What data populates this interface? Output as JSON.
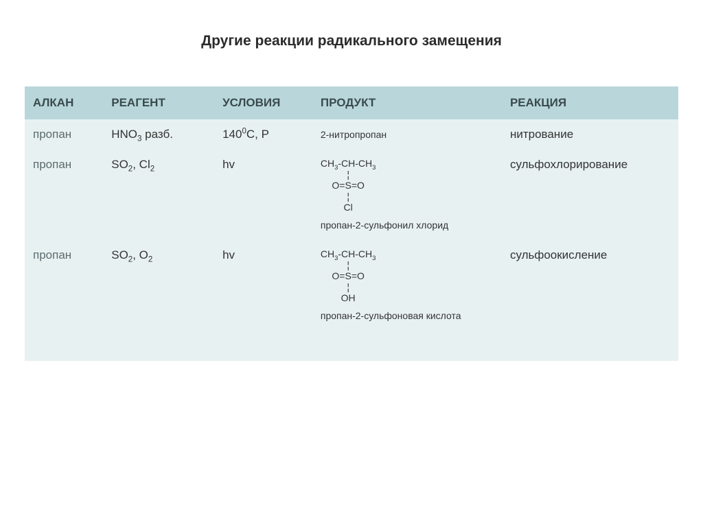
{
  "title": "Другие реакции радикального замещения",
  "columns": {
    "alkane": "АЛКАН",
    "reagent": "РЕАГЕНТ",
    "conditions": "УСЛОВИЯ",
    "product": "ПРОДУКТ",
    "reaction": "РЕАКЦИЯ"
  },
  "rows": {
    "r1": {
      "alkane": "пропан",
      "reagent_main": "HNO",
      "reagent_sub": "3",
      "reagent_tail": " разб.",
      "cond_main": "140",
      "cond_sup": "0",
      "cond_tail": "C, P",
      "product": "2-нитропропан",
      "reaction": "нитрование"
    },
    "r2": {
      "alkane": "пропан",
      "reagent_span1": "SO",
      "reagent_sub1": "2",
      "reagent_mid": ", Cl",
      "reagent_sub2": "2",
      "conditions": "hv",
      "struct_l1_a": "CH",
      "struct_l1_b": "-CH-CH",
      "struct_l2": "O=S=O",
      "struct_l3": "Cl",
      "product_label": "пропан-2-сульфонил хлорид",
      "reaction": "сульфохлорирование"
    },
    "r3": {
      "alkane": "пропан",
      "reagent_span1": "SO",
      "reagent_sub1": "2",
      "reagent_mid": ", O",
      "reagent_sub2": "2",
      "conditions": "hv",
      "struct_l1_a": "CH",
      "struct_l1_b": "-CH-CH",
      "struct_l2": "O=S=O",
      "struct_l3": "OH",
      "product_label": "пропан-2-сульфоновая кислота",
      "reaction": "сульфоокисление"
    }
  },
  "glyph": {
    "sub3": "3",
    "bond": "¦"
  }
}
